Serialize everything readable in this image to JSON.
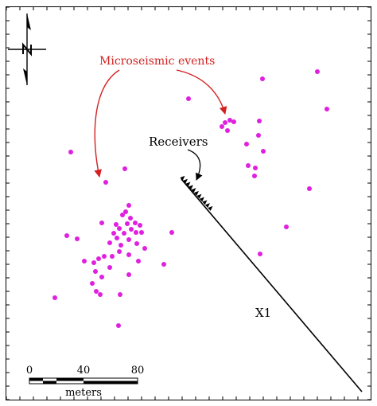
{
  "labels": {
    "microseismic": "Microseismic events",
    "receivers": "Receivers",
    "well": "X1"
  },
  "scale": {
    "ticks": [
      "0",
      "40",
      "80"
    ],
    "unit": "meters"
  },
  "colors": {
    "event": "#e020e0",
    "annotation_red": "#d42020",
    "line": "#000000"
  },
  "icons": {
    "north": "north-arrow-icon"
  },
  "events": [
    [
      399,
      90
    ],
    [
      330,
      99
    ],
    [
      237,
      124
    ],
    [
      411,
      137
    ],
    [
      289,
      151
    ],
    [
      283,
      154
    ],
    [
      279,
      159
    ],
    [
      294,
      153
    ],
    [
      326,
      152
    ],
    [
      286,
      164
    ],
    [
      325,
      170
    ],
    [
      310,
      181
    ],
    [
      89,
      191
    ],
    [
      331,
      190
    ],
    [
      312,
      208
    ],
    [
      321,
      211
    ],
    [
      320,
      221
    ],
    [
      157,
      212
    ],
    [
      133,
      229
    ],
    [
      389,
      237
    ],
    [
      162,
      258
    ],
    [
      158,
      266
    ],
    [
      154,
      270
    ],
    [
      164,
      274
    ],
    [
      170,
      280
    ],
    [
      146,
      282
    ],
    [
      128,
      280
    ],
    [
      160,
      281
    ],
    [
      150,
      287
    ],
    [
      165,
      288
    ],
    [
      176,
      283
    ],
    [
      143,
      293
    ],
    [
      156,
      293
    ],
    [
      171,
      292
    ],
    [
      178,
      292
    ],
    [
      147,
      299
    ],
    [
      162,
      301
    ],
    [
      138,
      305
    ],
    [
      172,
      306
    ],
    [
      216,
      292
    ],
    [
      84,
      296
    ],
    [
      97,
      300
    ],
    [
      152,
      308
    ],
    [
      182,
      312
    ],
    [
      150,
      316
    ],
    [
      162,
      320
    ],
    [
      131,
      322
    ],
    [
      141,
      322
    ],
    [
      124,
      325
    ],
    [
      106,
      328
    ],
    [
      118,
      330
    ],
    [
      174,
      328
    ],
    [
      138,
      336
    ],
    [
      206,
      332
    ],
    [
      120,
      341
    ],
    [
      128,
      348
    ],
    [
      162,
      345
    ],
    [
      116,
      356
    ],
    [
      121,
      366
    ],
    [
      126,
      370
    ],
    [
      151,
      370
    ],
    [
      69,
      374
    ],
    [
      149,
      409
    ],
    [
      360,
      285
    ],
    [
      327,
      319
    ]
  ]
}
